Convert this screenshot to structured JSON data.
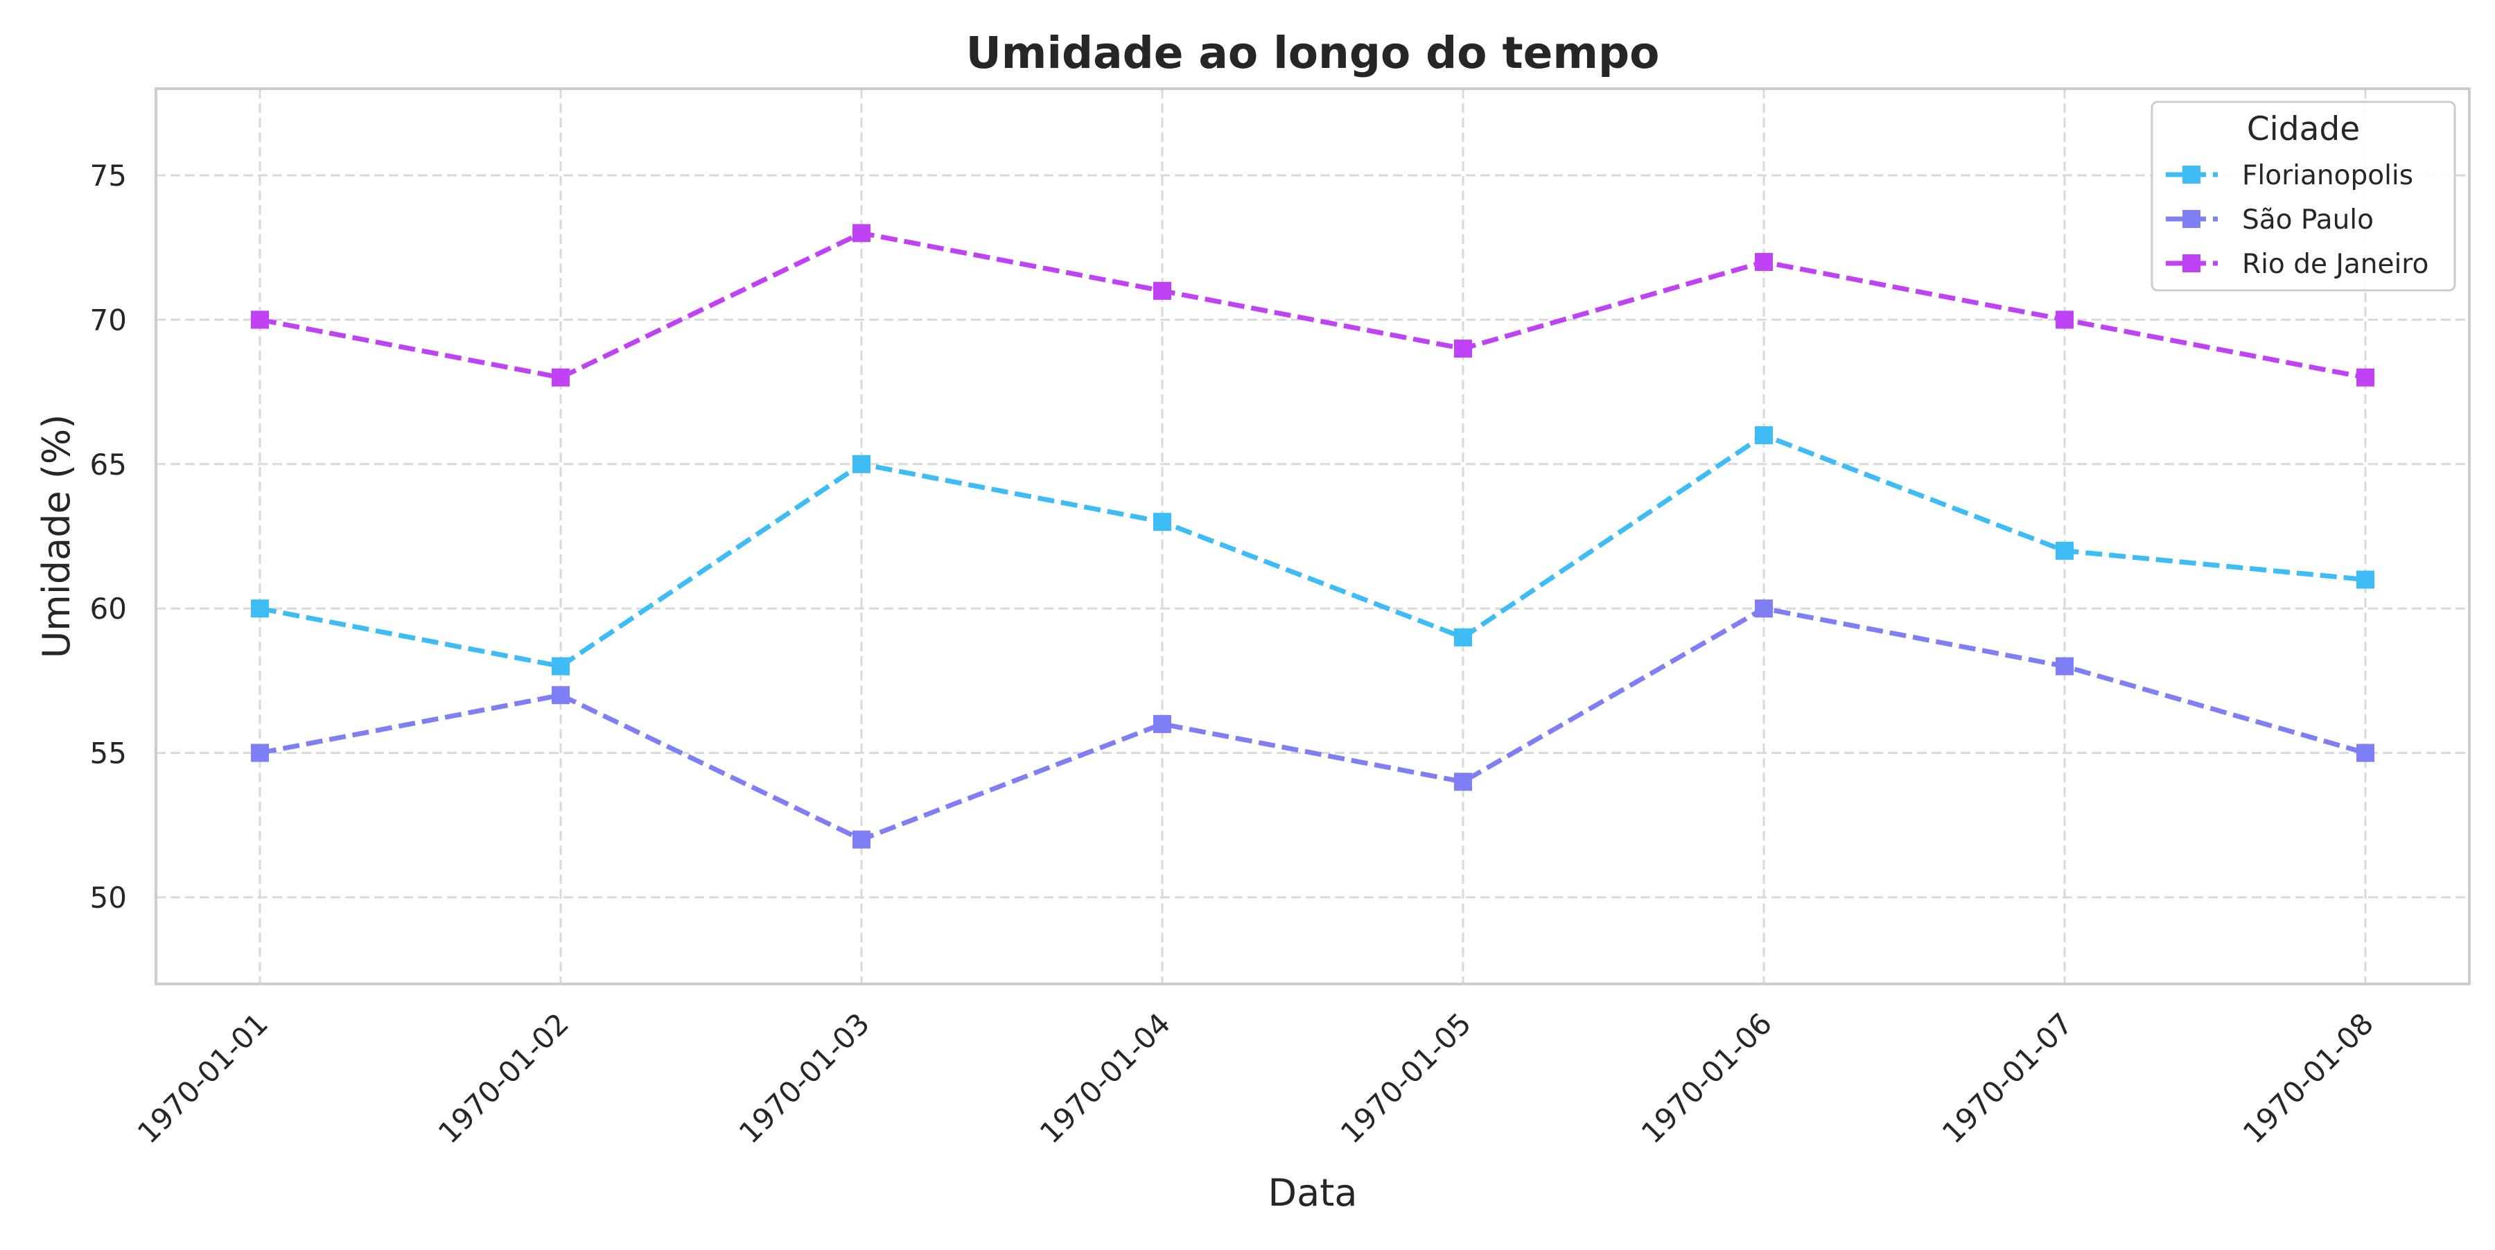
{
  "chart_data": {
    "type": "line",
    "title": "Umidade ao longo do tempo",
    "xlabel": "Data",
    "ylabel": "Umidade (%)",
    "categories": [
      "1970-01-01",
      "1970-01-02",
      "1970-01-03",
      "1970-01-04",
      "1970-01-05",
      "1970-01-06",
      "1970-01-07",
      "1970-01-08"
    ],
    "ylim": [
      47,
      78
    ],
    "yticks": [
      50,
      55,
      60,
      65,
      70,
      75
    ],
    "grid": true,
    "line_style": "dashed",
    "marker": "square",
    "legend": {
      "title": "Cidade",
      "placement": "top-right"
    },
    "series": [
      {
        "name": "Florianopolis",
        "color": "#3dbcf5",
        "values": [
          60,
          58,
          65,
          63,
          59,
          66,
          62,
          61
        ]
      },
      {
        "name": "São Paulo",
        "color": "#7f7ff5",
        "values": [
          55,
          57,
          52,
          56,
          54,
          60,
          58,
          55
        ]
      },
      {
        "name": "Rio de Janeiro",
        "color": "#c042f5",
        "values": [
          70,
          68,
          73,
          71,
          69,
          72,
          70,
          68
        ]
      }
    ]
  }
}
